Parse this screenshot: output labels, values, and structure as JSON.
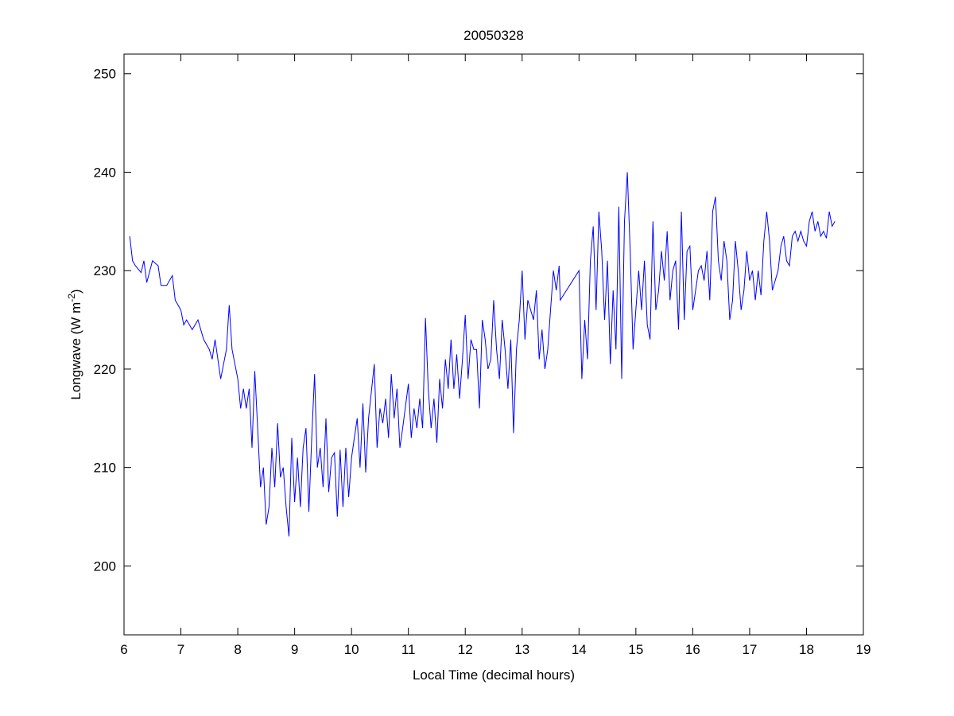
{
  "chart_data": {
    "type": "line",
    "title": "20050328",
    "xlabel": "Local Time (decimal hours)",
    "ylabel_main": "Longwave (W m",
    "ylabel_sup": "-2",
    "ylabel_close": ")",
    "xlim": [
      6,
      19
    ],
    "ylim": [
      193,
      252
    ],
    "xticks": [
      6,
      7,
      8,
      9,
      10,
      11,
      12,
      13,
      14,
      15,
      16,
      17,
      18,
      19
    ],
    "yticks": [
      200,
      210,
      220,
      230,
      240,
      250
    ],
    "grid": false,
    "series": [
      {
        "name": "Longwave",
        "color": "#0000ff",
        "x": [
          6.1,
          6.15,
          6.2,
          6.3,
          6.35,
          6.4,
          6.5,
          6.6,
          6.65,
          6.75,
          6.85,
          6.9,
          7.0,
          7.05,
          7.1,
          7.2,
          7.3,
          7.4,
          7.5,
          7.55,
          7.6,
          7.7,
          7.8,
          7.85,
          7.9,
          8.0,
          8.05,
          8.1,
          8.15,
          8.2,
          8.25,
          8.3,
          8.35,
          8.4,
          8.45,
          8.5,
          8.55,
          8.6,
          8.65,
          8.7,
          8.75,
          8.8,
          8.85,
          8.9,
          8.95,
          9.0,
          9.05,
          9.1,
          9.15,
          9.2,
          9.25,
          9.3,
          9.35,
          9.4,
          9.45,
          9.5,
          9.55,
          9.6,
          9.65,
          9.7,
          9.75,
          9.8,
          9.85,
          9.9,
          9.95,
          10.0,
          10.05,
          10.1,
          10.15,
          10.2,
          10.25,
          10.3,
          10.4,
          10.45,
          10.5,
          10.55,
          10.6,
          10.65,
          10.7,
          10.75,
          10.8,
          10.85,
          10.9,
          11.0,
          11.05,
          11.1,
          11.15,
          11.2,
          11.25,
          11.3,
          11.35,
          11.4,
          11.45,
          11.5,
          11.55,
          11.6,
          11.65,
          11.7,
          11.75,
          11.8,
          11.85,
          11.9,
          11.95,
          12.0,
          12.05,
          12.1,
          12.15,
          12.2,
          12.25,
          12.3,
          12.35,
          12.4,
          12.45,
          12.5,
          12.55,
          12.6,
          12.65,
          12.7,
          12.75,
          12.8,
          12.85,
          12.9,
          12.95,
          13.0,
          13.05,
          13.1,
          13.15,
          13.2,
          13.25,
          13.3,
          13.35,
          13.4,
          13.45,
          13.5,
          13.55,
          13.6,
          13.65,
          13.67,
          14.0,
          14.05,
          14.1,
          14.15,
          14.2,
          14.25,
          14.3,
          14.35,
          14.4,
          14.45,
          14.5,
          14.55,
          14.6,
          14.65,
          14.7,
          14.75,
          14.8,
          14.85,
          14.9,
          14.95,
          15.0,
          15.05,
          15.1,
          15.15,
          15.2,
          15.25,
          15.3,
          15.35,
          15.4,
          15.45,
          15.5,
          15.55,
          15.6,
          15.65,
          15.7,
          15.75,
          15.8,
          15.85,
          15.9,
          15.95,
          16.0,
          16.05,
          16.1,
          16.15,
          16.2,
          16.25,
          16.3,
          16.35,
          16.4,
          16.45,
          16.5,
          16.55,
          16.6,
          16.65,
          16.7,
          16.75,
          16.8,
          16.85,
          16.9,
          16.95,
          17.0,
          17.05,
          17.1,
          17.15,
          17.2,
          17.25,
          17.3,
          17.35,
          17.4,
          17.45,
          17.5,
          17.55,
          17.6,
          17.65,
          17.7,
          17.75,
          17.8,
          17.85,
          17.9,
          17.95,
          18.0,
          18.05,
          18.1,
          18.15,
          18.2,
          18.25,
          18.3,
          18.35,
          18.4,
          18.45,
          18.5
        ],
        "y": [
          233.5,
          231,
          230.5,
          229.8,
          231,
          228.8,
          231,
          230.5,
          228.5,
          228.5,
          229.5,
          227,
          226,
          224.5,
          225,
          224,
          225,
          223,
          222,
          221,
          223,
          219,
          222,
          226.5,
          222,
          219,
          216,
          218,
          216,
          218,
          212,
          219.8,
          214,
          208,
          210,
          204.2,
          206,
          212,
          208,
          214.5,
          209,
          210,
          206,
          203,
          213,
          206.5,
          211,
          206,
          212,
          214,
          205.5,
          213,
          219.5,
          210,
          212,
          208,
          215,
          207.5,
          211,
          211.5,
          205,
          211.8,
          206,
          212,
          207,
          211,
          213,
          215,
          210,
          216.5,
          209.5,
          215,
          220.5,
          212,
          216,
          214.5,
          217,
          213,
          219.5,
          215,
          218,
          212,
          214,
          218.5,
          213,
          216,
          214,
          217,
          214,
          225.2,
          218,
          214,
          217,
          212.5,
          219,
          216,
          221,
          218,
          223,
          218,
          221.5,
          217,
          221,
          225.5,
          219,
          223,
          222,
          222,
          216,
          225,
          223,
          220,
          221,
          227,
          222,
          219,
          225,
          222,
          218,
          223,
          213.5,
          222,
          225,
          230,
          223,
          227,
          226,
          225,
          228,
          221,
          224,
          220,
          222,
          226,
          230,
          228,
          230.5,
          227,
          230,
          219,
          225,
          221,
          231,
          234.5,
          226,
          236,
          232,
          225,
          231,
          220.5,
          228,
          222,
          236.5,
          219,
          235,
          240,
          232,
          222,
          226,
          230,
          226,
          231,
          224.5,
          223,
          235,
          226,
          228,
          232,
          229,
          234,
          227,
          230,
          231,
          224,
          236,
          225,
          232,
          232.5,
          226,
          228,
          230,
          230.5,
          229,
          232,
          227,
          236,
          237.5,
          231,
          229,
          233,
          231,
          225,
          227,
          233,
          230,
          226,
          228,
          232,
          229,
          230,
          227,
          230,
          227.5,
          233,
          236,
          233,
          228,
          229,
          230,
          232.5,
          233.5,
          231,
          230.5,
          233.5,
          234,
          233,
          234,
          233,
          232.5,
          235,
          236,
          234,
          235,
          233.5,
          234,
          233.3,
          236,
          234.5,
          235
        ]
      }
    ]
  }
}
